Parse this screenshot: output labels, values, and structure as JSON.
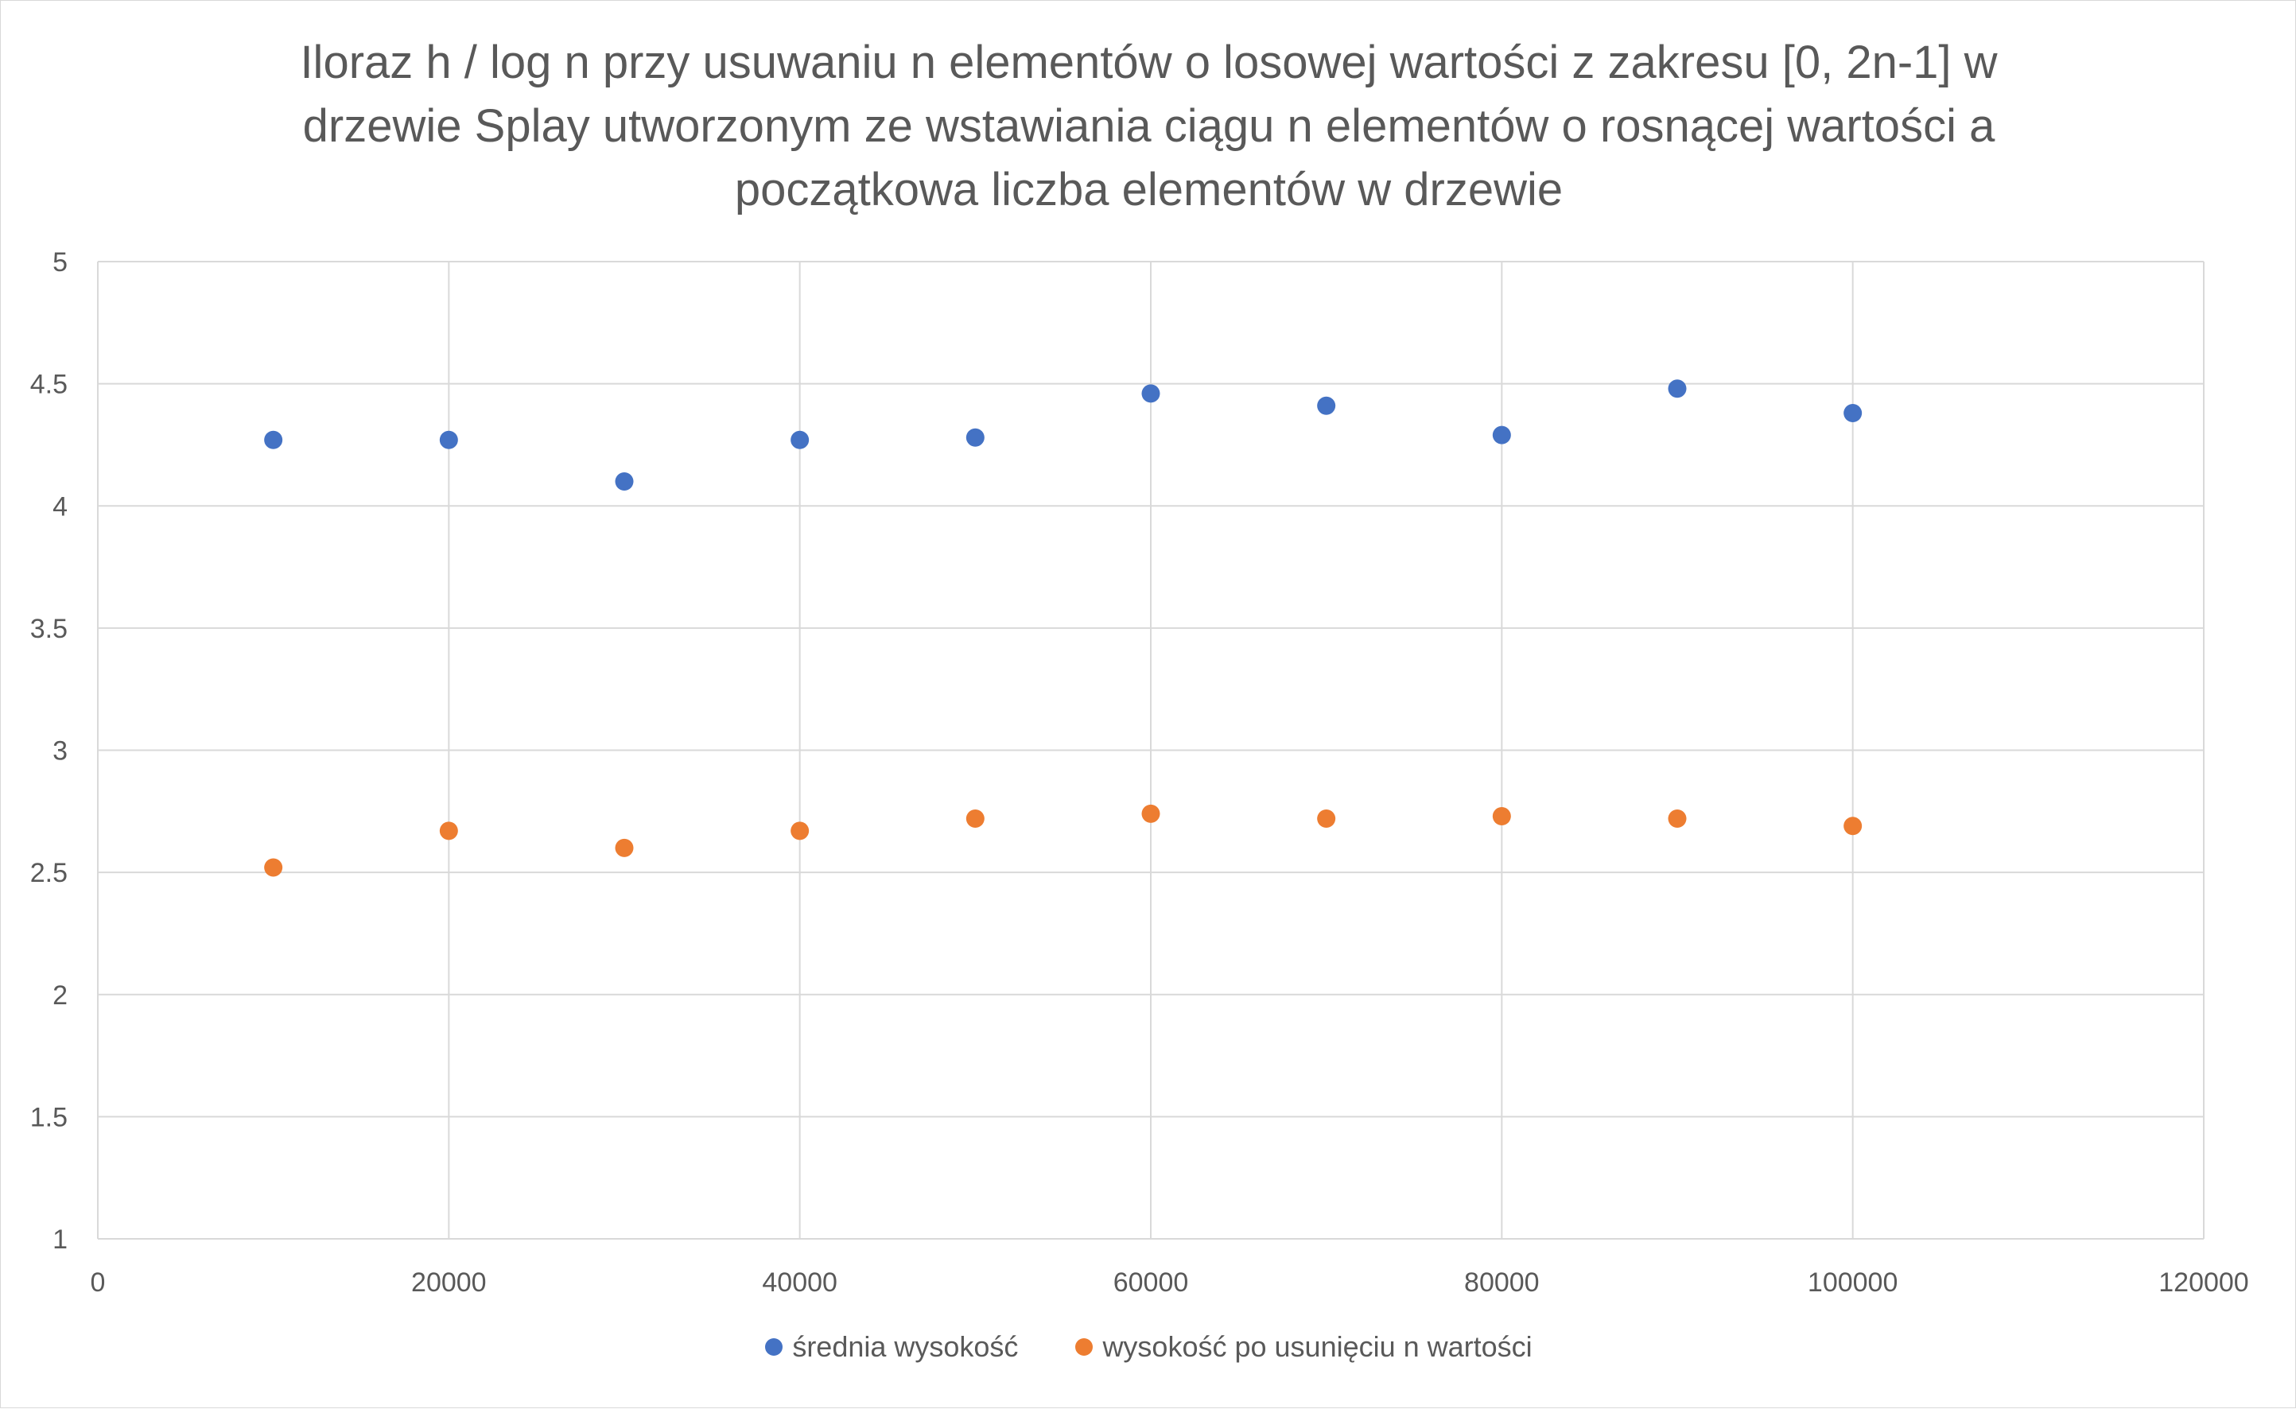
{
  "chart_data": {
    "type": "scatter",
    "title_lines": [
      "Iloraz h / log n przy usuwaniu n elementów o losowej wartości z zakresu [0, 2n-1] w",
      "drzewie Splay utworzonym ze wstawiania ciągu n elementów o rosnącej wartości a",
      "początkowa liczba elementów w drzewie"
    ],
    "xlim": [
      0,
      120000
    ],
    "ylim": [
      1,
      5
    ],
    "x_ticks": [
      "0",
      "20000",
      "40000",
      "60000",
      "80000",
      "100000",
      "120000"
    ],
    "y_ticks": [
      "1",
      "1.5",
      "2",
      "2.5",
      "3",
      "3.5",
      "4",
      "4.5",
      "5"
    ],
    "grid": true,
    "legend_position": "bottom",
    "series": [
      {
        "name": "średnia wysokość",
        "color": "#4472c4",
        "x": [
          10000,
          20000,
          30000,
          40000,
          50000,
          60000,
          70000,
          80000,
          90000,
          100000
        ],
        "y": [
          4.27,
          4.27,
          4.1,
          4.27,
          4.28,
          4.46,
          4.41,
          4.29,
          4.48,
          4.38
        ]
      },
      {
        "name": "wysokość po usunięciu n wartości",
        "color": "#ed7d31",
        "x": [
          10000,
          20000,
          30000,
          40000,
          50000,
          60000,
          70000,
          80000,
          90000,
          100000
        ],
        "y": [
          2.52,
          2.67,
          2.6,
          2.67,
          2.72,
          2.74,
          2.72,
          2.73,
          2.72,
          2.69
        ]
      }
    ]
  }
}
